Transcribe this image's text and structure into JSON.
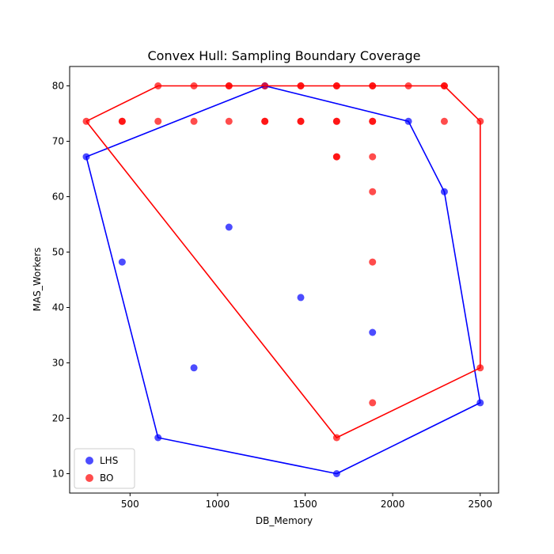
{
  "chart_data": {
    "type": "scatter",
    "title": "Convex Hull: Sampling Boundary Coverage",
    "xlabel": "DB_Memory",
    "ylabel": "MAS_Workers",
    "xlim": [
      155,
      2605
    ],
    "ylim": [
      6.5,
      83.5
    ],
    "xticks": [
      500,
      1000,
      1500,
      2000,
      2500
    ],
    "yticks": [
      10,
      20,
      30,
      40,
      50,
      60,
      70,
      80
    ],
    "grid": false,
    "legend": "lower-left",
    "series": [
      {
        "name": "LHS",
        "color": "#0000ff",
        "points": [
          [
            250,
            67.2
          ],
          [
            455,
            48.2
          ],
          [
            660,
            16.5
          ],
          [
            865,
            29.1
          ],
          [
            1065,
            54.5
          ],
          [
            1270,
            80.0
          ],
          [
            1475,
            41.8
          ],
          [
            1680,
            10.0
          ],
          [
            1885,
            35.5
          ],
          [
            2090,
            73.6
          ],
          [
            2295,
            60.9
          ],
          [
            2500,
            22.8
          ]
        ],
        "hull": [
          [
            1680,
            10.0
          ],
          [
            2500,
            22.8
          ],
          [
            2295,
            60.9
          ],
          [
            2090,
            73.6
          ],
          [
            1270,
            80.0
          ],
          [
            250,
            67.2
          ],
          [
            660,
            16.5
          ],
          [
            1680,
            10.0
          ]
        ]
      },
      {
        "name": "BO",
        "color": "#ff0000",
        "points": [
          [
            250,
            73.6
          ],
          [
            455,
            73.6
          ],
          [
            455,
            73.6
          ],
          [
            660,
            80.0
          ],
          [
            660,
            73.6
          ],
          [
            865,
            80.0
          ],
          [
            865,
            73.6
          ],
          [
            1065,
            80.0
          ],
          [
            1065,
            80.0
          ],
          [
            1065,
            73.6
          ],
          [
            1270,
            80.0
          ],
          [
            1270,
            73.6
          ],
          [
            1270,
            73.6
          ],
          [
            1475,
            80.0
          ],
          [
            1475,
            80.0
          ],
          [
            1475,
            73.6
          ],
          [
            1475,
            73.6
          ],
          [
            1680,
            80.0
          ],
          [
            1680,
            80.0
          ],
          [
            1680,
            73.6
          ],
          [
            1680,
            73.6
          ],
          [
            1680,
            67.2
          ],
          [
            1680,
            67.2
          ],
          [
            1680,
            16.5
          ],
          [
            1885,
            80.0
          ],
          [
            1885,
            80.0
          ],
          [
            1885,
            73.6
          ],
          [
            1885,
            73.6
          ],
          [
            1885,
            67.2
          ],
          [
            1885,
            60.9
          ],
          [
            1885,
            48.2
          ],
          [
            1885,
            22.8
          ],
          [
            2090,
            80.0
          ],
          [
            2295,
            80.0
          ],
          [
            2295,
            80.0
          ],
          [
            2295,
            73.6
          ],
          [
            2500,
            73.6
          ],
          [
            2500,
            29.1
          ]
        ],
        "hull": [
          [
            250,
            73.6
          ],
          [
            660,
            80.0
          ],
          [
            2295,
            80.0
          ],
          [
            2500,
            73.6
          ],
          [
            2500,
            29.1
          ],
          [
            1680,
            16.5
          ],
          [
            250,
            73.6
          ]
        ]
      }
    ]
  }
}
